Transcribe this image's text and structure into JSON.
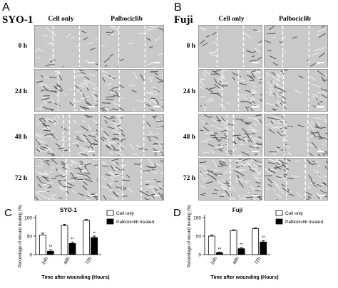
{
  "panel_a": {
    "letter": "A",
    "cell_line": "SYO-1",
    "columns": [
      "Cell only",
      "Palbociclib"
    ],
    "rows": [
      "0 h",
      "24 h",
      "48 h",
      "72 h"
    ]
  },
  "panel_b": {
    "letter": "B",
    "cell_line": "Fuji",
    "columns": [
      "Cell only",
      "Palbociclib"
    ],
    "rows": [
      "0 h",
      "24 h",
      "48 h",
      "72 h"
    ]
  },
  "colors": {
    "bar_open": "#ffffff",
    "bar_filled": "#000000",
    "micro_bg": "#c9c9c9"
  },
  "chart_data": [
    {
      "panel_letter": "C",
      "type": "bar",
      "title": "SYO-1",
      "xlabel": "Time after wounding (Hours)",
      "ylabel": "Percentage of wound healing (%)",
      "categories": [
        "24h",
        "48h",
        "72h"
      ],
      "ylim": [
        0,
        100
      ],
      "yticks": [
        0,
        50,
        100
      ],
      "series": [
        {
          "name": "Cell only",
          "values": [
            53,
            78,
            92
          ],
          "errors": [
            5,
            4,
            3
          ],
          "fill": "open"
        },
        {
          "name": "Palbociclib treated",
          "values": [
            9,
            30,
            46
          ],
          "errors": [
            4,
            4,
            4
          ],
          "fill": "filled"
        }
      ],
      "annotations": [
        "**",
        "**",
        "**"
      ],
      "legend": "top-right"
    },
    {
      "panel_letter": "D",
      "type": "bar",
      "title": "Fuji",
      "xlabel": "Time after wounding (Hours)",
      "ylabel": "Percentage of wound healing (%)",
      "categories": [
        "24h",
        "48h",
        "72h"
      ],
      "ylim": [
        0,
        100
      ],
      "yticks": [
        0,
        50,
        100
      ],
      "series": [
        {
          "name": "Cell only",
          "values": [
            50,
            65,
            70
          ],
          "errors": [
            3,
            2,
            2
          ],
          "fill": "open"
        },
        {
          "name": "Palbociclib treated",
          "values": [
            5,
            16,
            34
          ],
          "errors": [
            2,
            3,
            4
          ],
          "fill": "filled"
        }
      ],
      "annotations": [
        "**",
        "**",
        "**"
      ],
      "legend": "top-right"
    }
  ]
}
